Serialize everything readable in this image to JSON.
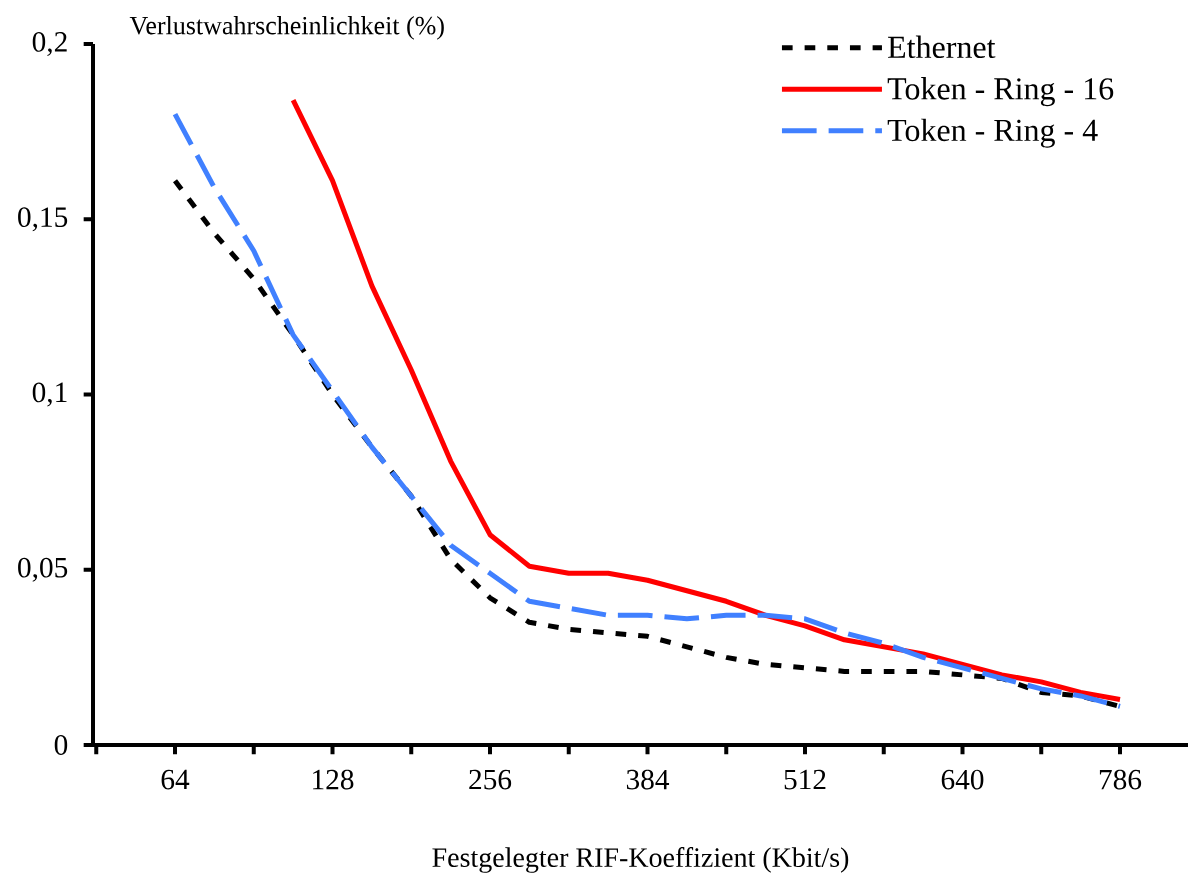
{
  "chart_data": {
    "type": "line",
    "ylabel": "Verlustwahrscheinlichkeit (%)",
    "xlabel": "Festgelegter RIF-Koeffizient (Kbit/s)",
    "categories": [
      "64",
      null,
      null,
      null,
      "128",
      null,
      null,
      null,
      "256",
      null,
      null,
      null,
      "384",
      null,
      null,
      null,
      "512",
      null,
      null,
      null,
      "640",
      null,
      null,
      null,
      "786"
    ],
    "ylim": [
      0,
      0.2
    ],
    "yticks": [
      0,
      {
        "value": 0.05,
        "label": "0,05"
      },
      {
        "value": 0.1,
        "label": "0,1"
      },
      {
        "value": 0.15,
        "label": "0,15"
      },
      {
        "value": 0.2,
        "label": "0,2"
      }
    ],
    "legend": "top right",
    "series": [
      {
        "name": "Ethernet",
        "color": "#000000",
        "line_style": "dotted",
        "values": [
          0.161,
          0.146,
          0.133,
          0.117,
          0.1,
          0.085,
          0.071,
          0.053,
          0.042,
          0.035,
          0.033,
          0.032,
          0.031,
          0.028,
          0.025,
          0.023,
          0.022,
          0.021,
          0.021,
          0.021,
          0.02,
          0.019,
          0.015,
          0.014,
          0.011
        ]
      },
      {
        "name": "Token - Ring - 16",
        "color": "#ff0000",
        "line_style": "solid",
        "values": [
          null,
          null,
          null,
          0.184,
          0.161,
          0.131,
          0.107,
          0.081,
          0.06,
          0.051,
          0.049,
          0.049,
          0.047,
          0.044,
          0.041,
          0.037,
          0.034,
          0.03,
          0.028,
          0.026,
          0.023,
          0.02,
          0.018,
          0.015,
          0.013
        ]
      },
      {
        "name": "Token - Ring - 4",
        "color": "#4080ff",
        "line_style": "dashed",
        "values": [
          0.18,
          0.159,
          0.141,
          0.117,
          0.101,
          0.085,
          0.071,
          0.057,
          0.049,
          0.041,
          0.039,
          0.037,
          0.037,
          0.036,
          0.037,
          0.037,
          0.036,
          0.032,
          0.029,
          0.025,
          0.022,
          0.019,
          0.016,
          0.014,
          0.011
        ]
      }
    ]
  }
}
